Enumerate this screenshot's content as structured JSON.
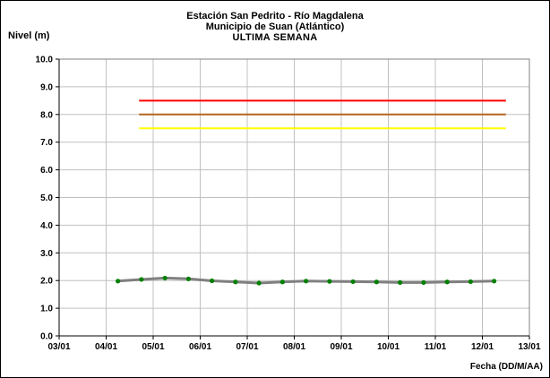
{
  "chart_data": {
    "type": "line",
    "title": [
      "Estación San Pedrito - Río Magdalena",
      "Municipio de Suan (Atlántico)",
      "ULTIMA SEMANA"
    ],
    "ylabel": "Nivel (m)",
    "xlabel": "Fecha (DD/M/AA)",
    "ylim": [
      0,
      10
    ],
    "yticks": [
      "0.0",
      "1.0",
      "2.0",
      "3.0",
      "4.0",
      "5.0",
      "6.0",
      "7.0",
      "8.0",
      "9.0",
      "10.0"
    ],
    "xlim": [
      3,
      13
    ],
    "xticks": [
      {
        "value": 3,
        "label": "03/01"
      },
      {
        "value": 4,
        "label": "04/01"
      },
      {
        "value": 5,
        "label": "05/01"
      },
      {
        "value": 6,
        "label": "06/01"
      },
      {
        "value": 7,
        "label": "07/01"
      },
      {
        "value": 8,
        "label": "08/01"
      },
      {
        "value": 9,
        "label": "09/01"
      },
      {
        "value": 10,
        "label": "10/01"
      },
      {
        "value": 11,
        "label": "11/01"
      },
      {
        "value": 12,
        "label": "12/01"
      },
      {
        "value": 13,
        "label": "13/01"
      }
    ],
    "grid": true,
    "thresholds": [
      {
        "value": 8.5,
        "x_start": 4.7,
        "x_end": 12.5,
        "color": "#ff0000"
      },
      {
        "value": 8.0,
        "x_start": 4.7,
        "x_end": 12.5,
        "color": "#b5651d"
      },
      {
        "value": 7.5,
        "x_start": 4.7,
        "x_end": 12.5,
        "color": "#ffff00"
      }
    ],
    "series": [
      {
        "line_color": "#808080",
        "marker_color": "#008000",
        "x": [
          4.25,
          4.75,
          5.25,
          5.75,
          6.25,
          6.75,
          7.25,
          7.75,
          8.25,
          8.75,
          9.25,
          9.75,
          10.25,
          10.75,
          11.25,
          11.75,
          12.25
        ],
        "y": [
          1.98,
          2.04,
          2.09,
          2.06,
          1.99,
          1.95,
          1.91,
          1.95,
          1.98,
          1.97,
          1.96,
          1.95,
          1.93,
          1.93,
          1.95,
          1.96,
          1.98
        ]
      }
    ]
  }
}
